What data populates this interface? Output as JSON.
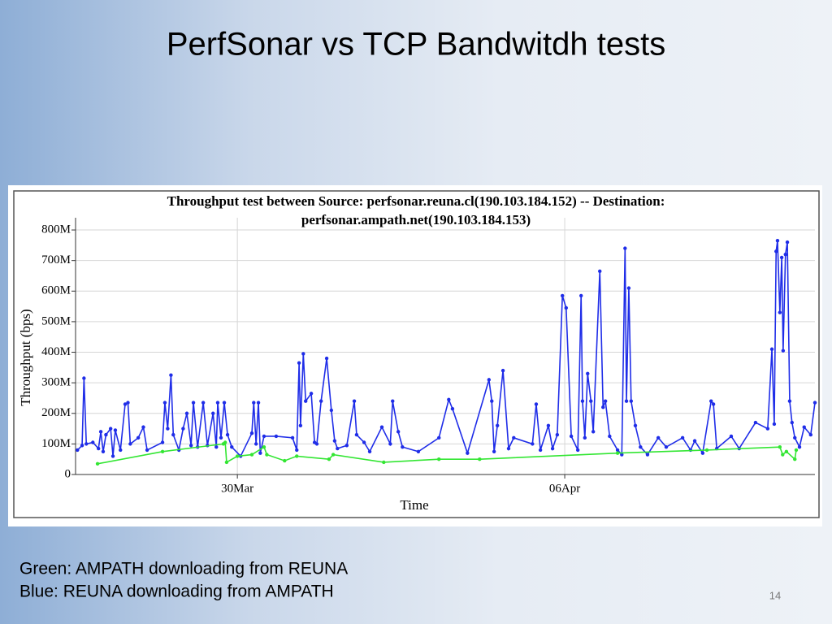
{
  "slide": {
    "title": "PerfSonar vs TCP Bandwitdh tests",
    "notes": [
      "Green: AMPATH downloading from REUNA",
      "Blue: REUNA downloading from AMPATH"
    ],
    "page_number": "14"
  },
  "chart_data": {
    "type": "line",
    "title": [
      "Throughput test between Source: perfsonar.reuna.cl(190.103.184.152) -- Destination:",
      "perfsonar.ampath.net(190.103.184.153)"
    ],
    "x_label": "Time",
    "y_label": "Throughput (bps)",
    "xlim": [
      26.54,
      42.35
    ],
    "xticks": [
      {
        "value": 30,
        "label": "30Mar"
      },
      {
        "value": 37,
        "label": "06Apr"
      }
    ],
    "ylim": [
      0,
      840000000.0
    ],
    "yticks": [
      0,
      {
        "value": 100000000.0,
        "label": "100M"
      },
      {
        "value": 200000000.0,
        "label": "200M"
      },
      {
        "value": 300000000.0,
        "label": "300M"
      },
      {
        "value": 400000000.0,
        "label": "400M"
      },
      {
        "value": 500000000.0,
        "label": "500M"
      },
      {
        "value": 600000000.0,
        "label": "600M"
      },
      {
        "value": 700000000.0,
        "label": "700M"
      },
      {
        "value": 800000000.0,
        "label": "800M"
      }
    ],
    "grid": true,
    "series": [
      {
        "color": "#1f2de8",
        "x": [
          26.58,
          26.68,
          26.72,
          26.77,
          26.91,
          27.03,
          27.08,
          27.13,
          27.19,
          27.29,
          27.34,
          27.39,
          27.5,
          27.6,
          27.66,
          27.71,
          27.88,
          27.99,
          28.07,
          28.4,
          28.45,
          28.51,
          28.58,
          28.63,
          28.75,
          28.84,
          28.92,
          29.01,
          29.06,
          29.15,
          29.27,
          29.36,
          29.48,
          29.55,
          29.58,
          29.65,
          29.72,
          29.79,
          29.88,
          30.07,
          30.31,
          30.35,
          30.4,
          30.45,
          30.49,
          30.57,
          30.83,
          31.18,
          31.27,
          31.32,
          31.35,
          31.41,
          31.46,
          31.58,
          31.65,
          31.7,
          31.79,
          31.91,
          32.01,
          32.08,
          32.14,
          32.34,
          32.5,
          32.55,
          32.71,
          32.83,
          33.09,
          33.27,
          33.32,
          33.44,
          33.53,
          33.87,
          34.31,
          34.52,
          34.6,
          34.92,
          35.38,
          35.44,
          35.49,
          35.56,
          35.68,
          35.8,
          35.91,
          36.31,
          36.39,
          36.48,
          36.65,
          36.74,
          36.84,
          36.95,
          37.03,
          37.14,
          37.28,
          37.35,
          37.38,
          37.43,
          37.49,
          37.56,
          37.61,
          37.75,
          37.82,
          37.87,
          37.96,
          38.13,
          38.22,
          38.29,
          38.32,
          38.37,
          38.42,
          38.51,
          38.62,
          38.77,
          39.0,
          39.17,
          39.52,
          39.69,
          39.78,
          39.95,
          40.13,
          40.18,
          40.25,
          40.56,
          40.73,
          41.08,
          41.34,
          41.43,
          41.48,
          41.52,
          41.55,
          41.6,
          41.64,
          41.67,
          41.72,
          41.76,
          41.81,
          41.86,
          41.92,
          42.02,
          42.12,
          42.26,
          42.35
        ],
        "values": [
          80000000.0,
          95000000.0,
          315000000.0,
          100000000.0,
          105000000.0,
          85000000.0,
          140000000.0,
          75000000.0,
          130000000.0,
          150000000.0,
          60000000.0,
          145000000.0,
          80000000.0,
          230000000.0,
          235000000.0,
          100000000.0,
          120000000.0,
          155000000.0,
          80000000.0,
          105000000.0,
          235000000.0,
          150000000.0,
          325000000.0,
          130000000.0,
          80000000.0,
          150000000.0,
          200000000.0,
          95000000.0,
          235000000.0,
          90000000.0,
          235000000.0,
          95000000.0,
          200000000.0,
          90000000.0,
          235000000.0,
          120000000.0,
          235000000.0,
          130000000.0,
          90000000.0,
          60000000.0,
          135000000.0,
          235000000.0,
          100000000.0,
          235000000.0,
          70000000.0,
          125000000.0,
          125000000.0,
          120000000.0,
          80000000.0,
          365000000.0,
          160000000.0,
          395000000.0,
          240000000.0,
          265000000.0,
          105000000.0,
          100000000.0,
          240000000.0,
          380000000.0,
          210000000.0,
          110000000.0,
          85000000.0,
          95000000.0,
          240000000.0,
          130000000.0,
          105000000.0,
          75000000.0,
          155000000.0,
          100000000.0,
          240000000.0,
          140000000.0,
          90000000.0,
          75000000.0,
          120000000.0,
          245000000.0,
          215000000.0,
          70000000.0,
          310000000.0,
          240000000.0,
          75000000.0,
          160000000.0,
          340000000.0,
          85000000.0,
          120000000.0,
          100000000.0,
          230000000.0,
          80000000.0,
          160000000.0,
          85000000.0,
          130000000.0,
          585000000.0,
          545000000.0,
          125000000.0,
          80000000.0,
          585000000.0,
          240000000.0,
          120000000.0,
          330000000.0,
          240000000.0,
          140000000.0,
          665000000.0,
          220000000.0,
          240000000.0,
          125000000.0,
          80000000.0,
          65000000.0,
          740000000.0,
          240000000.0,
          610000000.0,
          240000000.0,
          160000000.0,
          90000000.0,
          65000000.0,
          120000000.0,
          90000000.0,
          120000000.0,
          80000000.0,
          110000000.0,
          70000000.0,
          240000000.0,
          230000000.0,
          85000000.0,
          125000000.0,
          85000000.0,
          170000000.0,
          150000000.0,
          410000000.0,
          165000000.0,
          730000000.0,
          765000000.0,
          530000000.0,
          710000000.0,
          405000000.0,
          720000000.0,
          760000000.0,
          240000000.0,
          170000000.0,
          120000000.0,
          90000000.0,
          155000000.0,
          130000000.0,
          235000000.0
        ]
      },
      {
        "color": "#33e633",
        "x": [
          27.01,
          28.4,
          29.7,
          29.74,
          29.77,
          30.0,
          30.31,
          30.57,
          30.63,
          31.01,
          31.27,
          31.96,
          32.05,
          33.13,
          34.31,
          35.18,
          38.13,
          40.04,
          41.6,
          41.66,
          41.74,
          41.92,
          41.95
        ],
        "values": [
          35000000.0,
          75000000.0,
          100000000.0,
          105000000.0,
          40000000.0,
          60000000.0,
          65000000.0,
          90000000.0,
          65000000.0,
          45000000.0,
          60000000.0,
          50000000.0,
          65000000.0,
          40000000.0,
          50000000.0,
          50000000.0,
          70000000.0,
          80000000.0,
          90000000.0,
          65000000.0,
          75000000.0,
          50000000.0,
          80000000.0
        ]
      }
    ]
  }
}
